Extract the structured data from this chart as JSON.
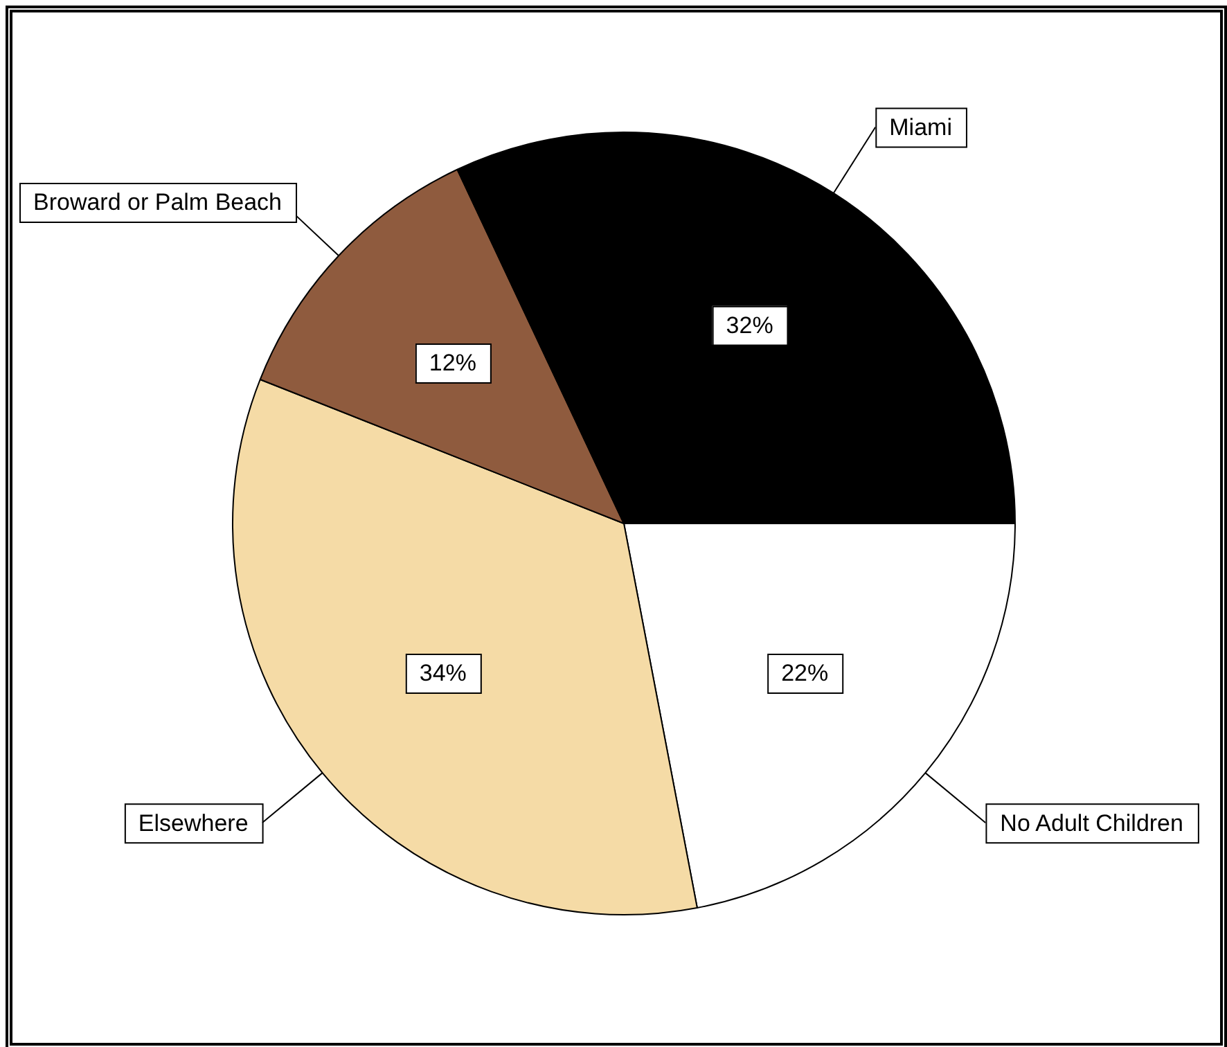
{
  "chart_data": {
    "type": "pie",
    "categories": [
      "No Adult Children",
      "Elsewhere",
      "Broward or Palm Beach",
      "Miami"
    ],
    "values": [
      22,
      34,
      12,
      32
    ],
    "colors": [
      "#ffffff",
      "#f5dba6",
      "#8f5b3e",
      "#000000"
    ],
    "value_labels": [
      "22%",
      "34%",
      "12%",
      "32%"
    ],
    "legend": false
  }
}
